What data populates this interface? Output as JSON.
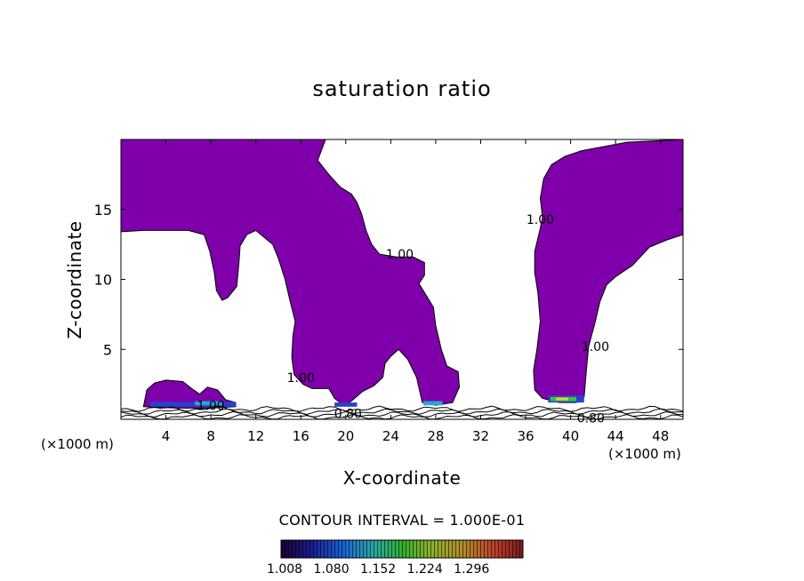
{
  "chart_data": {
    "type": "contour",
    "title": "saturation ratio",
    "xlabel": "X-coordinate",
    "ylabel": "Z-coordinate",
    "x_unit_left": "(×1000 m)",
    "x_unit_right": "(×1000 m)",
    "xlim": [
      0,
      50
    ],
    "ylim": [
      0,
      20
    ],
    "x_ticks": [
      4,
      8,
      12,
      16,
      20,
      24,
      28,
      32,
      36,
      40,
      44,
      48
    ],
    "y_ticks": [
      5,
      10,
      15
    ],
    "contour_interval_text": "CONTOUR INTERVAL = 1.000E-01",
    "contour_labels": [
      {
        "text": "1.00",
        "x": 24.8,
        "z": 11.8
      },
      {
        "text": "1.00",
        "x": 37.3,
        "z": 14.3
      },
      {
        "text": "1.00",
        "x": 42.2,
        "z": 5.2
      },
      {
        "text": "1.00",
        "x": 16.0,
        "z": 3.0
      },
      {
        "text": "1.00",
        "x": 8.0,
        "z": 1.0
      },
      {
        "text": "0.80",
        "x": 20.2,
        "z": 0.4
      },
      {
        "text": "0.80",
        "x": 41.8,
        "z": 0.1
      }
    ],
    "colorbar": {
      "labels": [
        "1.008",
        "1.080",
        "1.152",
        "1.224",
        "1.296"
      ],
      "min": 1.008,
      "max": 1.332
    },
    "colors": {
      "supersaturated_fill": "#7f00aa",
      "contour_line": "#000000"
    }
  }
}
